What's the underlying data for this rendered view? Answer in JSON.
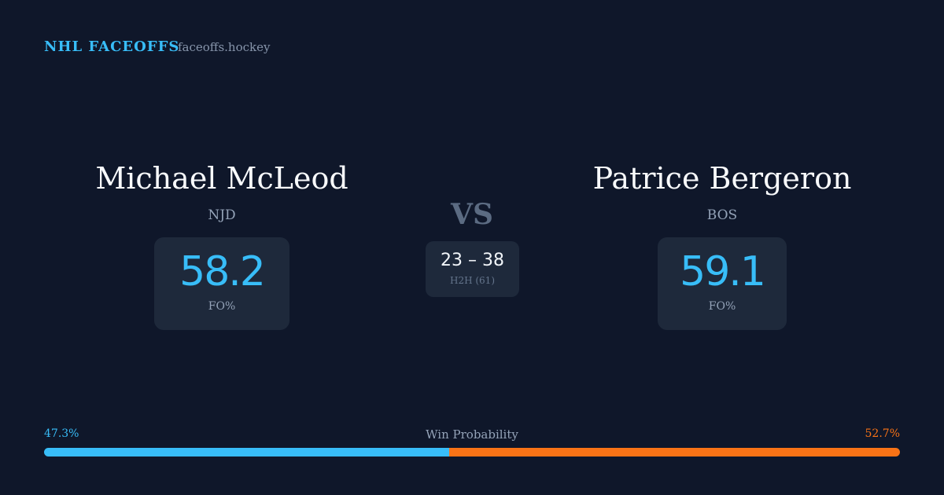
{
  "header": {
    "brand": "NHL FACEOFFS",
    "site": "faceoffs.hockey"
  },
  "players": [
    {
      "name": "Michael McLeod",
      "team": "NJD",
      "fo": 58.2,
      "fo_label": "FO%"
    },
    {
      "name": "Patrice Bergeron",
      "team": "BOS",
      "fo": 59.1,
      "fo_label": "FO%"
    }
  ],
  "versus": "VS",
  "h2h": {
    "score": "23 – 38",
    "label": "H2H (61)"
  },
  "win_probability": {
    "title": "Win Probability",
    "left": {
      "value": 47.3,
      "label": "47.3%",
      "color": "#38bdf8"
    },
    "right": {
      "value": 52.7,
      "label": "52.7%",
      "color": "#f97316"
    }
  }
}
